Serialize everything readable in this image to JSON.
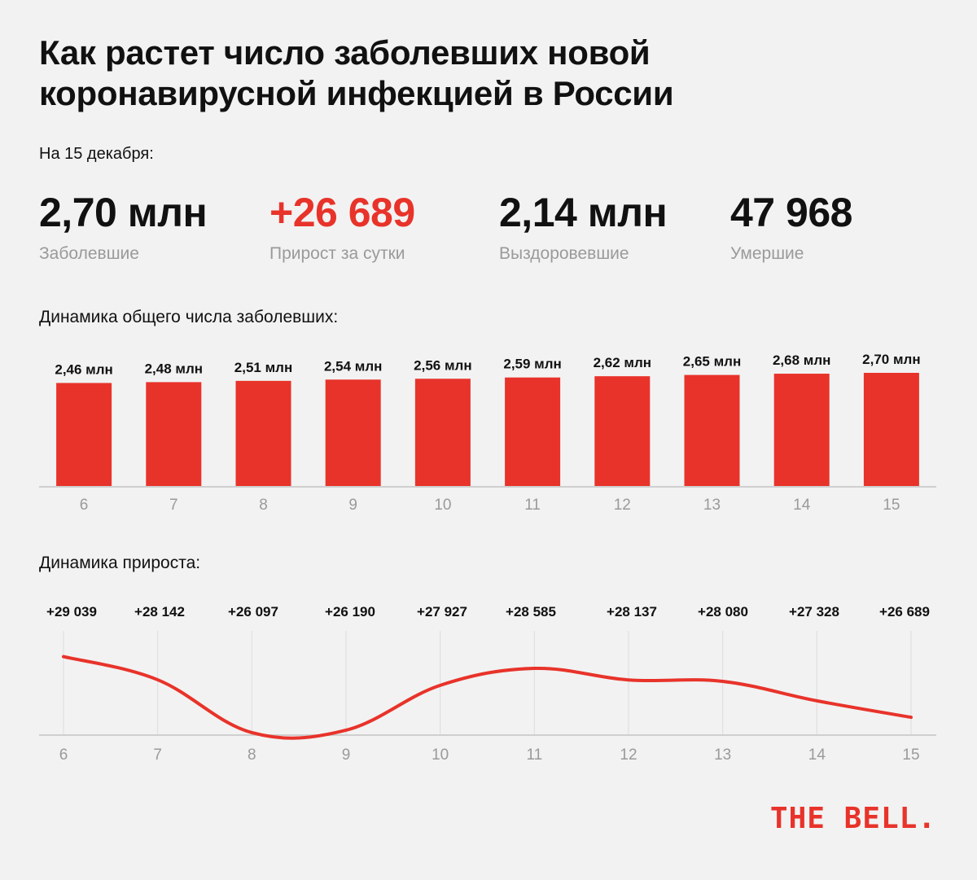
{
  "title": "Как растет число заболевших новой коронавирусной инфекцией в России",
  "as_of": "На 15 декабря:",
  "stats": [
    {
      "value": "2,70 млн",
      "label": "Заболевшие"
    },
    {
      "value": "+26 689",
      "label": "Прирост за сутки"
    },
    {
      "value": "2,14 млн",
      "label": "Выздоровевшие"
    },
    {
      "value": "47 968",
      "label": "Умершие"
    }
  ],
  "colors": {
    "accent": "#e8332a",
    "muted": "#9a9a9a",
    "background": "#f2f2f2"
  },
  "brand": "THE BELL.",
  "chart_data": [
    {
      "type": "bar",
      "title": "Динамика общего числа заболевших:",
      "categories": [
        "6",
        "7",
        "8",
        "9",
        "10",
        "11",
        "12",
        "13",
        "14",
        "15"
      ],
      "values": [
        2.46,
        2.48,
        2.51,
        2.54,
        2.56,
        2.59,
        2.62,
        2.65,
        2.68,
        2.7
      ],
      "data_labels": [
        "2,46 млн",
        "2,48 млн",
        "2,51 млн",
        "2,54 млн",
        "2,56 млн",
        "2,59 млн",
        "2,62 млн",
        "2,65 млн",
        "2,68 млн",
        "2,70 млн"
      ],
      "ylim": [
        0,
        2.7
      ],
      "grid": false,
      "legend": false
    },
    {
      "type": "line",
      "title": "Динамика прироста:",
      "categories": [
        "6",
        "7",
        "8",
        "9",
        "10",
        "11",
        "12",
        "13",
        "14",
        "15"
      ],
      "values": [
        29039,
        28142,
        26097,
        26190,
        27927,
        28585,
        28137,
        28080,
        27328,
        26689
      ],
      "data_labels": [
        "+29 039",
        "+28 142",
        "+26 097",
        "+26 190",
        "+27 927",
        "+28 585",
        "+28 137",
        "+28 080",
        "+27 328",
        "+26 689"
      ],
      "ylim": [
        26000,
        29500
      ],
      "grid": true,
      "legend": false
    }
  ]
}
